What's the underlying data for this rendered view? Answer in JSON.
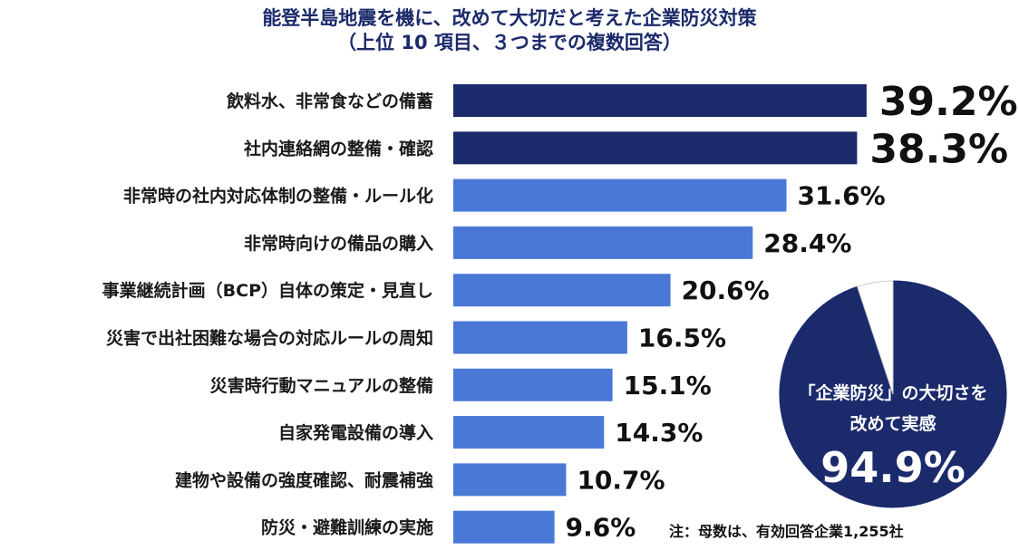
{
  "chart_data": [
    {
      "type": "bar",
      "orientation": "horizontal",
      "title": "能登半島地震を機に、改めて大切だと考えた企業防災対策",
      "subtitle": "（上位 10 項目、３つまでの複数回答）",
      "unit": "%",
      "categories": [
        "飲料水、非常食などの備蓄",
        "社内連絡網の整備・確認",
        "非常時の社内対応体制の整備・ルール化",
        "非常時向けの備品の購入",
        "事業継続計画（BCP）自体の策定・見直し",
        "災害で出社困難な場合の対応ルールの周知",
        "災害時行動マニュアルの整備",
        "自家発電設備の導入",
        "建物や設備の強度確認、耐震補強",
        "防災・避難訓練の実施"
      ],
      "values": [
        39.2,
        38.3,
        31.6,
        28.4,
        20.6,
        16.5,
        15.1,
        14.3,
        10.7,
        9.6
      ],
      "value_labels": [
        "39.2%",
        "38.3%",
        "31.6%",
        "28.4%",
        "20.6%",
        "16.5%",
        "15.1%",
        "14.3%",
        "10.7%",
        "9.6%"
      ],
      "highlight_count": 2,
      "colors": {
        "highlight": "#1b2a6b",
        "normal": "#4a78d6"
      },
      "xlim": [
        0,
        40
      ],
      "grid": false,
      "legend": "none"
    },
    {
      "type": "pie",
      "slices": [
        {
          "label": "「企業防災」の大切さを改めて実感",
          "value": 94.9,
          "color": "#1b2a6b"
        },
        {
          "label": "",
          "value": 5.1,
          "color": "#ffffff"
        }
      ],
      "center_text": {
        "line1": "「企業防災」の大切さを",
        "line2": "改めて実感",
        "value_label": "94.9%"
      }
    }
  ],
  "note": "注：母数は、有効回答企業1,255社"
}
